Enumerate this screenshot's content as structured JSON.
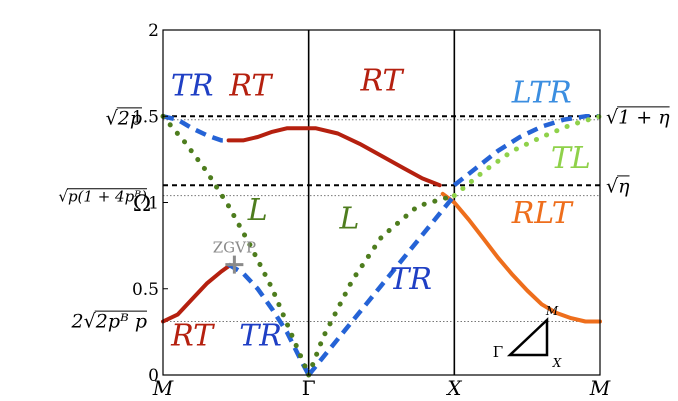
{
  "chart_data": {
    "type": "line",
    "title": "",
    "xlabel": "",
    "ylabel": "Ω",
    "xlim": [
      0,
      3
    ],
    "ylim": [
      0,
      2
    ],
    "x_ticks": [
      {
        "x": 0,
        "label": "M"
      },
      {
        "x": 1,
        "label": "Γ"
      },
      {
        "x": 2,
        "label": "X"
      },
      {
        "x": 3,
        "label": "M"
      }
    ],
    "y_ticks": [
      {
        "y": 0,
        "label": "0"
      },
      {
        "y": 0.5,
        "label": "0.5"
      },
      {
        "y": 1,
        "label": "1"
      },
      {
        "y": 1.5,
        "label": "1.5"
      },
      {
        "y": 2,
        "label": "2"
      }
    ],
    "reference_lines": [
      {
        "y": 1.5,
        "style": "dashed",
        "left_label": "√2p",
        "right_label": "√1 + η"
      },
      {
        "y": 1.1,
        "style": "dashed",
        "left_label": "",
        "right_label": "√η"
      },
      {
        "y": 1.48,
        "style": "dotted",
        "left_label": "",
        "right_label": ""
      },
      {
        "y": 1.04,
        "style": "dotted",
        "left_label": "√p(1 + 4p_B)",
        "right_label": ""
      },
      {
        "y": 0.31,
        "style": "dotted",
        "left_label": "2√2p_B p",
        "right_label": ""
      }
    ],
    "vertical_lines": [
      1,
      2
    ],
    "series": [
      {
        "style": "solid",
        "color": "#b5200f",
        "points": [
          [
            0,
            0.31
          ],
          [
            0.1,
            0.35
          ],
          [
            0.2,
            0.44
          ],
          [
            0.3,
            0.53
          ],
          [
            0.4,
            0.6
          ],
          [
            0.45,
            0.63
          ]
        ]
      },
      {
        "style": "solid",
        "color": "#b5200f",
        "points": [
          [
            0.45,
            1.36
          ],
          [
            0.55,
            1.36
          ],
          [
            0.65,
            1.38
          ],
          [
            0.75,
            1.41
          ],
          [
            0.85,
            1.43
          ],
          [
            0.95,
            1.43
          ],
          [
            1.05,
            1.43
          ],
          [
            1.2,
            1.4
          ],
          [
            1.35,
            1.34
          ],
          [
            1.5,
            1.27
          ],
          [
            1.65,
            1.2
          ],
          [
            1.78,
            1.14
          ],
          [
            1.9,
            1.1
          ]
        ]
      },
      {
        "style": "solid",
        "color": "#ee6e1c",
        "points": [
          [
            1.92,
            1.05
          ],
          [
            2.0,
            1.0
          ],
          [
            2.1,
            0.9
          ],
          [
            2.2,
            0.79
          ],
          [
            2.3,
            0.68
          ],
          [
            2.4,
            0.58
          ],
          [
            2.5,
            0.49
          ],
          [
            2.6,
            0.41
          ],
          [
            2.7,
            0.36
          ],
          [
            2.8,
            0.33
          ],
          [
            2.9,
            0.31
          ],
          [
            3.0,
            0.31
          ]
        ]
      },
      {
        "style": "dashed",
        "color": "#2563d6",
        "points": [
          [
            0,
            1.5
          ],
          [
            0.1,
            1.48
          ],
          [
            0.2,
            1.43
          ],
          [
            0.3,
            1.39
          ],
          [
            0.4,
            1.36
          ],
          [
            0.45,
            1.36
          ]
        ]
      },
      {
        "style": "dashed",
        "color": "#2563d6",
        "points": [
          [
            0.45,
            0.64
          ],
          [
            0.55,
            0.59
          ],
          [
            0.65,
            0.5
          ],
          [
            0.75,
            0.38
          ],
          [
            0.85,
            0.25
          ],
          [
            0.95,
            0.08
          ],
          [
            1.0,
            0.0
          ]
        ]
      },
      {
        "style": "dashed",
        "color": "#2563d6",
        "points": [
          [
            1.0,
            0.0
          ],
          [
            1.25,
            0.26
          ],
          [
            1.5,
            0.52
          ],
          [
            1.75,
            0.78
          ],
          [
            2.0,
            1.04
          ]
        ]
      },
      {
        "style": "dashed",
        "color": "#2563d6",
        "points": [
          [
            2.0,
            1.1
          ],
          [
            2.15,
            1.2
          ],
          [
            2.3,
            1.3
          ],
          [
            2.45,
            1.38
          ],
          [
            2.6,
            1.44
          ],
          [
            2.75,
            1.48
          ],
          [
            2.9,
            1.5
          ],
          [
            3.0,
            1.5
          ]
        ]
      },
      {
        "style": "dotted",
        "color": "#4e7d1e",
        "points": [
          [
            0,
            1.5
          ],
          [
            0.15,
            1.35
          ],
          [
            0.3,
            1.18
          ],
          [
            0.45,
            0.98
          ],
          [
            0.6,
            0.75
          ],
          [
            0.75,
            0.5
          ],
          [
            0.85,
            0.3
          ],
          [
            0.95,
            0.1
          ],
          [
            1.0,
            0.0
          ]
        ]
      },
      {
        "style": "dotted",
        "color": "#4e7d1e",
        "points": [
          [
            1.0,
            0.0
          ],
          [
            1.1,
            0.22
          ],
          [
            1.3,
            0.55
          ],
          [
            1.5,
            0.8
          ],
          [
            1.75,
            0.98
          ],
          [
            2.0,
            1.04
          ]
        ]
      },
      {
        "style": "dotted",
        "color": "#8fd14a",
        "points": [
          [
            2.0,
            1.04
          ],
          [
            2.2,
            1.18
          ],
          [
            2.4,
            1.3
          ],
          [
            2.6,
            1.38
          ],
          [
            2.8,
            1.45
          ],
          [
            3.0,
            1.5
          ]
        ]
      }
    ],
    "branch_labels": [
      {
        "text": "TR",
        "color": "#1f3fc4",
        "x": 0.2,
        "y": 1.62
      },
      {
        "text": "RT",
        "color": "#b5200f",
        "x": 0.6,
        "y": 1.62
      },
      {
        "text": "RT",
        "color": "#b5200f",
        "x": 1.5,
        "y": 1.65
      },
      {
        "text": "LTR",
        "color": "#3b8ee0",
        "x": 2.6,
        "y": 1.58
      },
      {
        "text": "TL",
        "color": "#8fd14a",
        "x": 2.8,
        "y": 1.2
      },
      {
        "text": "RLT",
        "color": "#ee6e1c",
        "x": 2.6,
        "y": 0.88
      },
      {
        "text": "L",
        "color": "#4e7d1e",
        "x": 0.65,
        "y": 0.9
      },
      {
        "text": "L",
        "color": "#4e7d1e",
        "x": 1.28,
        "y": 0.85
      },
      {
        "text": "TR",
        "color": "#1f3fc4",
        "x": 1.7,
        "y": 0.5
      },
      {
        "text": "RT",
        "color": "#b5200f",
        "x": 0.2,
        "y": 0.17
      },
      {
        "text": "TR",
        "color": "#1f3fc4",
        "x": 0.67,
        "y": 0.17
      }
    ],
    "annotations": [
      {
        "text": "ZGVP",
        "color": "#8a8a8a",
        "x": 0.49,
        "y": 0.64
      }
    ],
    "inset": {
      "corner_labels": [
        "Γ",
        "X",
        "M"
      ]
    }
  }
}
